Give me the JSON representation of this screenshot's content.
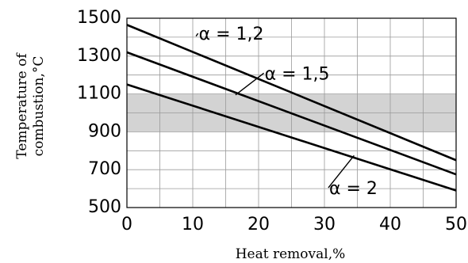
{
  "chart_data": {
    "type": "line",
    "xlabel": "Heat removal,%",
    "ylabel_line1": "Temperature of",
    "ylabel_line2": "combustion,°C",
    "xlim": [
      0,
      50
    ],
    "ylim": [
      500,
      1500
    ],
    "x_ticks": [
      0,
      10,
      20,
      30,
      40,
      50
    ],
    "y_ticks": [
      500,
      700,
      900,
      1100,
      1300,
      1500
    ],
    "grid": true,
    "band": {
      "y_from": 900,
      "y_to": 1100,
      "color": "#d3d3d3"
    },
    "series": [
      {
        "name": "α = 1,2",
        "x": [
          0,
          50
        ],
        "y": [
          1465,
          750
        ]
      },
      {
        "name": "α = 1,5",
        "x": [
          0,
          50
        ],
        "y": [
          1320,
          675
        ]
      },
      {
        "name": "α = 2",
        "x": [
          0,
          50
        ],
        "y": [
          1150,
          590
        ]
      }
    ],
    "annotations": [
      {
        "series": 0,
        "text": "α = 1,2",
        "at_x": 10.5,
        "at_y": 1405,
        "label_x": 10.8,
        "label_y": 1420
      },
      {
        "series": 1,
        "text": "α = 1,5",
        "at_x": 16.5,
        "at_y": 1095,
        "label_x": 20.8,
        "label_y": 1210
      },
      {
        "series": 2,
        "text": "α = 2",
        "at_x": 34.5,
        "at_y": 775,
        "label_x": 30.6,
        "label_y": 605
      }
    ]
  }
}
